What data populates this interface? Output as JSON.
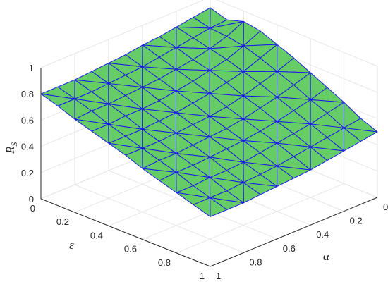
{
  "chart_data": {
    "type": "surface",
    "xlabel": "α",
    "ylabel": "ε",
    "zlabel_main": "R",
    "zlabel_sub": "S",
    "x_range": [
      0,
      1
    ],
    "y_range": [
      0,
      1
    ],
    "z_range": [
      0,
      1
    ],
    "x_ticks": [
      "0",
      "0.2",
      "0.4",
      "0.6",
      "0.8",
      "1"
    ],
    "y_ticks": [
      "0",
      "0.2",
      "0.4",
      "0.6",
      "0.8",
      "1"
    ],
    "z_ticks": [
      "0",
      "0.2",
      "0.4",
      "0.6",
      "0.8",
      "1"
    ],
    "grid": true,
    "face_color": "#66cc66",
    "edge_color": "#1a1ae6",
    "alpha_values": [
      0,
      0.1,
      0.2,
      0.3,
      0.4,
      0.5,
      0.6,
      0.7,
      0.8,
      0.9,
      1
    ],
    "epsilon_values": [
      0,
      0.1,
      0.2,
      0.3,
      0.4,
      0.5,
      0.6,
      0.7,
      0.8,
      0.9,
      1
    ],
    "z": [
      [
        0.92,
        0.88,
        0.92,
        0.9,
        0.85,
        0.8,
        0.74,
        0.68,
        0.62,
        0.55,
        0.5
      ],
      [
        0.9,
        0.87,
        0.86,
        0.84,
        0.8,
        0.75,
        0.7,
        0.64,
        0.59,
        0.53,
        0.48
      ],
      [
        0.88,
        0.85,
        0.82,
        0.79,
        0.75,
        0.71,
        0.66,
        0.61,
        0.56,
        0.51,
        0.46
      ],
      [
        0.86,
        0.83,
        0.79,
        0.76,
        0.72,
        0.67,
        0.63,
        0.58,
        0.54,
        0.49,
        0.44
      ],
      [
        0.85,
        0.81,
        0.77,
        0.73,
        0.69,
        0.64,
        0.6,
        0.56,
        0.52,
        0.47,
        0.42
      ],
      [
        0.83,
        0.79,
        0.75,
        0.71,
        0.67,
        0.62,
        0.58,
        0.54,
        0.5,
        0.45,
        0.41
      ],
      [
        0.82,
        0.78,
        0.74,
        0.69,
        0.65,
        0.61,
        0.57,
        0.53,
        0.48,
        0.44,
        0.4
      ],
      [
        0.81,
        0.77,
        0.73,
        0.68,
        0.64,
        0.6,
        0.56,
        0.52,
        0.47,
        0.43,
        0.39
      ],
      [
        0.8,
        0.76,
        0.72,
        0.68,
        0.63,
        0.59,
        0.55,
        0.51,
        0.47,
        0.42,
        0.38
      ],
      [
        0.8,
        0.76,
        0.72,
        0.67,
        0.63,
        0.59,
        0.55,
        0.51,
        0.46,
        0.42,
        0.38
      ],
      [
        0.8,
        0.76,
        0.71,
        0.67,
        0.63,
        0.59,
        0.54,
        0.5,
        0.46,
        0.42,
        0.38
      ]
    ]
  }
}
